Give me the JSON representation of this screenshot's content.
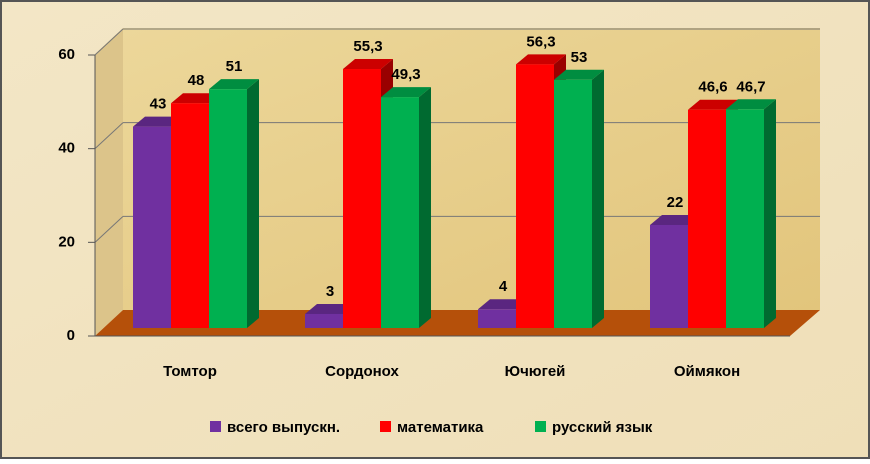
{
  "chart_data": {
    "type": "bar3d",
    "categories": [
      "Томтор",
      "Сордонох",
      "Ючюгей",
      "Оймякон"
    ],
    "series": [
      {
        "name": "всего выпускн.",
        "color": "#7030a0",
        "values": [
          43,
          3,
          4,
          22
        ],
        "value_labels": [
          "43",
          "3",
          "4",
          "22"
        ]
      },
      {
        "name": "математика",
        "color": "#ff0000",
        "values": [
          48,
          55.3,
          56.3,
          46.6
        ],
        "value_labels": [
          "48",
          "55,3",
          "56,3",
          "46,6"
        ]
      },
      {
        "name": "русский язык",
        "color": "#00b050",
        "values": [
          51,
          49.3,
          53,
          46.7
        ],
        "value_labels": [
          "51",
          "49,3",
          "53",
          "46,7"
        ]
      }
    ],
    "ylim": [
      0,
      60
    ],
    "yticks": [
      0,
      20,
      40,
      60
    ],
    "grid": true,
    "legend": "bottom"
  }
}
